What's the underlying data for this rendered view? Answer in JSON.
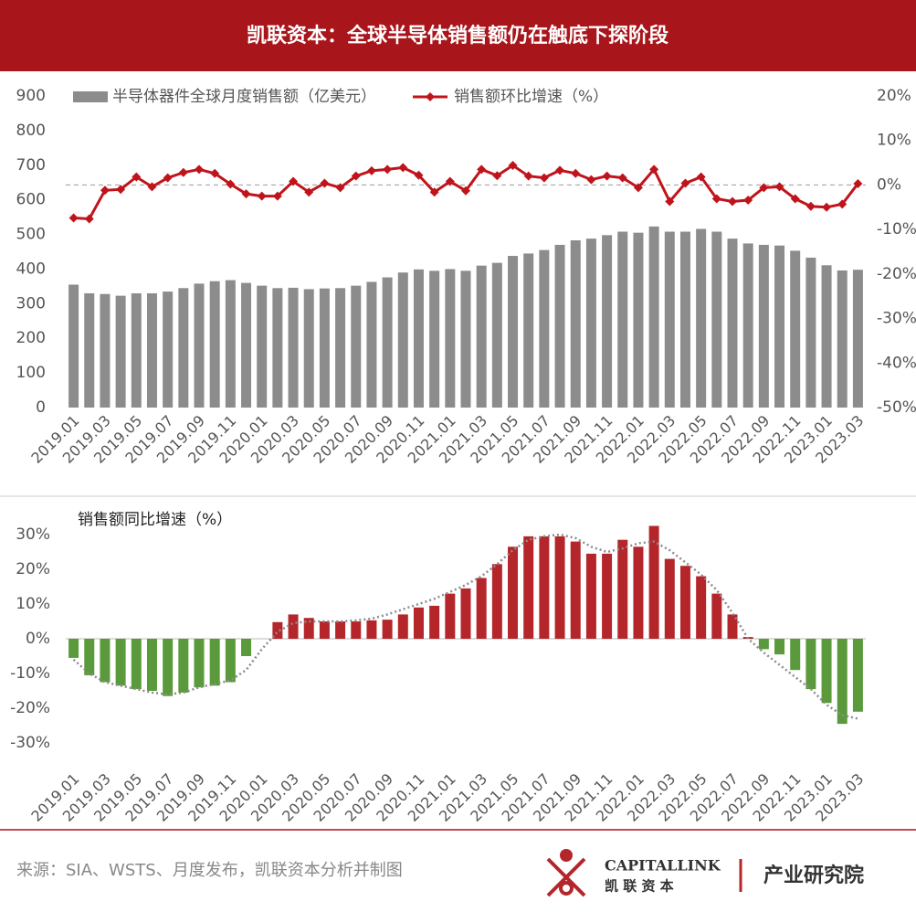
{
  "header": {
    "title": "凯联资本：全球半导体销售额仍在触底下探阶段"
  },
  "chart_data": [
    {
      "type": "combo",
      "categories": [
        "2019.01",
        null,
        "2019.03",
        null,
        "2019.05",
        null,
        "2019.07",
        null,
        "2019.09",
        null,
        "2019.11",
        null,
        "2020.01",
        null,
        "2020.03",
        null,
        "2020.05",
        null,
        "2020.07",
        null,
        "2020.09",
        null,
        "2020.11",
        null,
        "2021.01",
        null,
        "2021.03",
        null,
        "2021.05",
        null,
        "2021.07",
        null,
        "2021.09",
        null,
        "2021.11",
        null,
        "2022.01",
        null,
        "2022.03",
        null,
        "2022.05",
        null,
        "2022.07",
        null,
        "2022.09",
        null,
        "2022.11",
        null,
        "2023.01",
        null,
        "2023.03"
      ],
      "series": [
        {
          "name": "半导体器件全球月度销售额（亿美元）",
          "color": "#8c8c8c",
          "type": "bar",
          "values": [
            355,
            330,
            328,
            323,
            330,
            330,
            335,
            345,
            358,
            365,
            368,
            360,
            352,
            345,
            346,
            342,
            344,
            345,
            352,
            363,
            376,
            390,
            399,
            395,
            400,
            395,
            410,
            418,
            438,
            445,
            455,
            470,
            483,
            488,
            498,
            508,
            505,
            523,
            508,
            508,
            516,
            508,
            488,
            474,
            470,
            468,
            453,
            433,
            411,
            396,
            398
          ]
        },
        {
          "name": "销售额环比增速（%）",
          "color": "#c0141c",
          "type": "line",
          "axis": "y2",
          "values": [
            -7.4,
            -7.6,
            -1.2,
            -1.0,
            1.8,
            -0.4,
            1.6,
            2.8,
            3.5,
            2.6,
            0.2,
            -2.0,
            -2.5,
            -2.5,
            0.8,
            -1.6,
            0.4,
            -0.6,
            2.0,
            3.2,
            3.5,
            3.9,
            2.2,
            -1.6,
            0.8,
            -1.3,
            3.5,
            2.1,
            4.4,
            2.0,
            1.6,
            3.3,
            2.6,
            1.2,
            2.0,
            1.6,
            -0.6,
            3.5,
            -3.7,
            0.4,
            1.8,
            -3.1,
            -3.7,
            -3.4,
            -0.6,
            -0.4,
            -3.1,
            -4.8,
            -5.0,
            -4.3,
            0.3
          ]
        }
      ],
      "ylim": [
        0,
        900
      ],
      "yticks": [
        0,
        100,
        200,
        300,
        400,
        500,
        600,
        700,
        800,
        900
      ],
      "y2lim": [
        -50,
        20
      ],
      "y2ticks": [
        {
          "value": 20,
          "label": "20%"
        },
        {
          "value": 10,
          "label": "10%"
        },
        {
          "value": 0,
          "label": "0%"
        },
        {
          "value": -10,
          "label": "-10%"
        },
        {
          "value": -20,
          "label": "-20%"
        },
        {
          "value": -30,
          "label": "-30%"
        },
        {
          "value": -40,
          "label": "-40%"
        },
        {
          "value": -50,
          "label": "-50%"
        }
      ],
      "legend": "top-left"
    },
    {
      "type": "bar",
      "title": "销售额同比增速（%）",
      "categories": [
        "2019.01",
        null,
        "2019.03",
        null,
        "2019.05",
        null,
        "2019.07",
        null,
        "2019.09",
        null,
        "2019.11",
        null,
        "2020.01",
        null,
        "2020.03",
        null,
        "2020.05",
        null,
        "2020.07",
        null,
        "2020.09",
        null,
        "2020.11",
        null,
        "2021.01",
        null,
        "2021.03",
        null,
        "2021.05",
        null,
        "2021.07",
        null,
        "2021.09",
        null,
        "2021.11",
        null,
        "2022.01",
        null,
        "2022.03",
        null,
        "2022.05",
        null,
        "2022.07",
        null,
        "2022.09",
        null,
        "2022.11",
        null,
        "2023.01",
        null,
        "2023.03"
      ],
      "values": [
        -5.5,
        -10.5,
        -12.5,
        -13.5,
        -14.5,
        -15,
        -16.5,
        -15.5,
        -14,
        -13.5,
        -12.5,
        -5,
        0,
        4.8,
        7,
        6,
        5,
        5,
        5,
        5.3,
        5.5,
        7,
        9,
        9.5,
        13,
        14.5,
        17.5,
        21.5,
        26.5,
        29.5,
        29.5,
        29.5,
        28,
        24.5,
        24.5,
        28.5,
        26.5,
        32.5,
        23,
        21,
        18,
        13,
        7,
        0.5,
        -3,
        -4.5,
        -9,
        -14.5,
        -18.5,
        -24.5,
        -21
      ],
      "positive_color": "#b5262b",
      "negative_color": "#5a9a3c",
      "trend": {
        "color": "#8c8c8c",
        "values": [
          -6,
          -10,
          -12.5,
          -13.5,
          -14.5,
          -15.5,
          -16,
          -15.5,
          -14,
          -13,
          -12,
          -9,
          -3,
          2,
          4.5,
          5,
          5,
          5,
          5.3,
          5.8,
          7,
          8.5,
          10,
          11.5,
          13.5,
          15.5,
          18,
          21.5,
          25.5,
          28.5,
          29.5,
          30,
          29,
          26.5,
          25,
          26,
          27.5,
          28,
          25.5,
          22,
          18.5,
          14,
          7.5,
          0,
          -4,
          -7.5,
          -11,
          -14.5,
          -19,
          -22,
          -23
        ]
      },
      "ylim": [
        -35,
        35
      ],
      "yticks": [
        {
          "value": 30,
          "label": "30%"
        },
        {
          "value": 20,
          "label": "20%"
        },
        {
          "value": 10,
          "label": "10%"
        },
        {
          "value": 0,
          "label": "0%"
        },
        {
          "value": -10,
          "label": "-10%"
        },
        {
          "value": -20,
          "label": "-20%"
        },
        {
          "value": -30,
          "label": "-30%"
        }
      ]
    }
  ],
  "footer": {
    "source": "来源：SIA、WSTS、月度发布，凯联资本分析并制图",
    "logo_name": "CAPITALLINK",
    "logo_cn": "凯 联 资 本",
    "division": "产业研究院"
  }
}
